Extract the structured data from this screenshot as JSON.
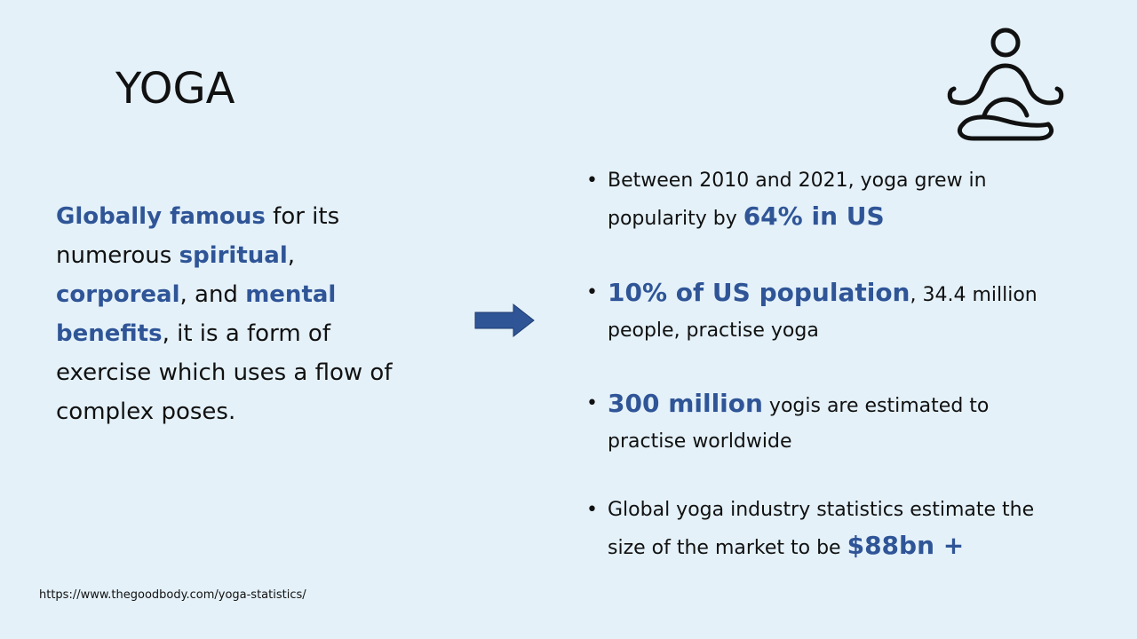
{
  "slide": {
    "title": "YOGA",
    "icon": "meditating-person-icon",
    "arrow_icon": "right-arrow-icon",
    "left_text": {
      "part1_hl": "Globally famous",
      "part2": " for its numerous ",
      "part3_hl": "spiritual",
      "part4": ", ",
      "part5_hl": "corporeal",
      "part6": ", and ",
      "part7_hl": "mental benefits",
      "part8": ", it is a form of exercise which uses a flow of complex poses."
    },
    "bullets": [
      {
        "pre": "Between 2010 and 2021, yoga grew in popularity by ",
        "highlight": "64% in US",
        "post": ""
      },
      {
        "pre": "",
        "highlight": "10% of US population",
        "post": ", 34.4 million people, practise yoga"
      },
      {
        "pre": "",
        "highlight": "300 million",
        "post": " yogis are estimated to practise worldwide"
      },
      {
        "pre": "Global yoga industry statistics estimate the size of the market to be ",
        "highlight": "$88bn +",
        "post": ""
      }
    ],
    "bullet_marker": "•",
    "source_url": "https://www.thegoodbody.com/yoga-statistics/",
    "colors": {
      "background": "#e4f1f9",
      "accent": "#2f5597",
      "text": "#111111"
    }
  }
}
